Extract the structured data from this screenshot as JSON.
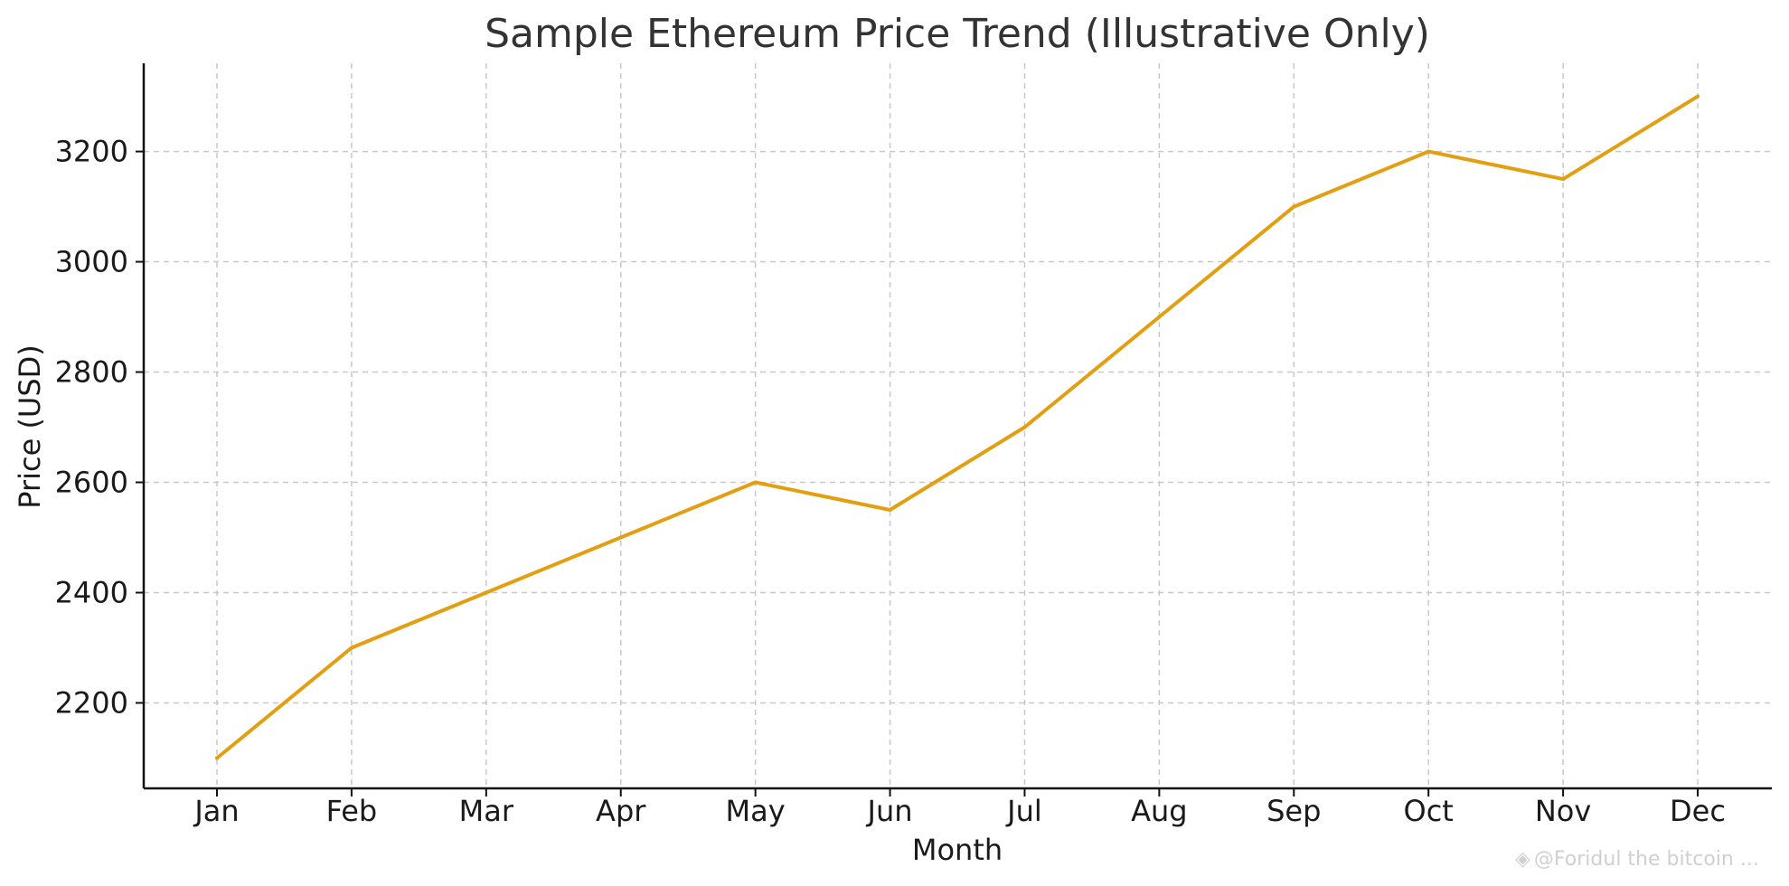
{
  "chart_data": {
    "type": "line",
    "title": "Sample Ethereum Price Trend (Illustrative Only)",
    "xlabel": "Month",
    "ylabel": "Price (USD)",
    "categories": [
      "Jan",
      "Feb",
      "Mar",
      "Apr",
      "May",
      "Jun",
      "Jul",
      "Aug",
      "Sep",
      "Oct",
      "Nov",
      "Dec"
    ],
    "series": [
      {
        "name": "Ethereum Price",
        "values": [
          2100,
          2300,
          2400,
          2500,
          2600,
          2550,
          2700,
          2900,
          3100,
          3200,
          3150,
          3300
        ]
      }
    ],
    "yticks": [
      2200,
      2400,
      2600,
      2800,
      3000,
      3200
    ],
    "ylim": [
      2045,
      3360
    ],
    "grid": true,
    "legend": "none"
  },
  "colors": {
    "series": "#e39e12",
    "grid": "#c8c8c8",
    "axis": "#111111"
  },
  "watermark": {
    "icon": "diamond-watermark-icon",
    "text": "@Foridul the bitcoin ..."
  }
}
